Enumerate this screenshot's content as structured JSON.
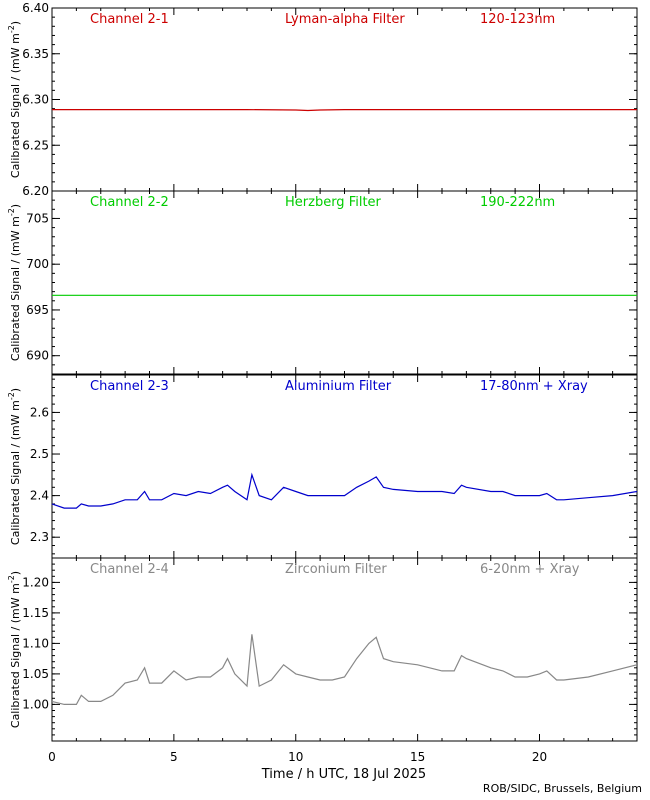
{
  "figure": {
    "x_axis_label": "Time / h UTC, 18 Jul 2025",
    "credit": "ROB/SIDC, Brussels, Belgium",
    "y_axis_label_base": "Calibrated Signal / (mW m",
    "y_axis_label_sup": "-2",
    "y_axis_label_end": ")"
  },
  "chart_data": [
    {
      "type": "line",
      "channel": "Channel 2-1",
      "filter": "Lyman-alpha Filter",
      "band": "120-123nm",
      "color": "#cc0000",
      "xlim": [
        0,
        24
      ],
      "ylim": [
        6.2,
        6.4
      ],
      "yticks": [
        6.2,
        6.25,
        6.3,
        6.35,
        6.4
      ],
      "ytick_labels": [
        "6.20",
        "6.25",
        "6.30",
        "6.35",
        "6.40"
      ],
      "x": [
        0,
        4,
        8,
        10,
        10.5,
        11,
        12,
        16,
        20,
        24
      ],
      "y": [
        6.289,
        6.289,
        6.289,
        6.2885,
        6.288,
        6.2885,
        6.289,
        6.289,
        6.289,
        6.289
      ]
    },
    {
      "type": "line",
      "channel": "Channel 2-2",
      "filter": "Herzberg Filter",
      "band": "190-222nm",
      "color": "#00cc00",
      "xlim": [
        0,
        24
      ],
      "ylim": [
        688,
        708
      ],
      "yticks": [
        690,
        695,
        700,
        705
      ],
      "ytick_labels": [
        "690",
        "695",
        "700",
        "705"
      ],
      "x": [
        0,
        6,
        12,
        18,
        24
      ],
      "y": [
        696.6,
        696.6,
        696.6,
        696.6,
        696.6
      ]
    },
    {
      "type": "line",
      "channel": "Channel 2-3",
      "filter": "Aluminium Filter",
      "band": "17-80nm + Xray",
      "color": "#0000cc",
      "xlim": [
        0,
        24
      ],
      "ylim": [
        2.25,
        2.69
      ],
      "yticks": [
        2.3,
        2.4,
        2.5,
        2.6
      ],
      "ytick_labels": [
        "2.3",
        "2.4",
        "2.5",
        "2.6"
      ],
      "x": [
        0,
        0.5,
        1,
        1.2,
        1.5,
        2,
        2.5,
        3,
        3.5,
        3.8,
        4,
        4.5,
        5,
        5.5,
        6,
        6.5,
        7,
        7.2,
        7.5,
        8,
        8.2,
        8.5,
        9,
        9.5,
        10,
        10.5,
        11,
        11.5,
        12,
        12.5,
        13,
        13.3,
        13.6,
        14,
        15,
        16,
        16.5,
        16.8,
        17,
        18,
        18.5,
        19,
        19.5,
        20,
        20.3,
        20.7,
        21,
        22,
        23,
        24
      ],
      "y": [
        2.38,
        2.37,
        2.37,
        2.38,
        2.375,
        2.375,
        2.38,
        2.39,
        2.39,
        2.41,
        2.39,
        2.39,
        2.405,
        2.4,
        2.41,
        2.405,
        2.42,
        2.425,
        2.41,
        2.39,
        2.45,
        2.4,
        2.39,
        2.42,
        2.41,
        2.4,
        2.4,
        2.4,
        2.4,
        2.42,
        2.435,
        2.445,
        2.42,
        2.415,
        2.41,
        2.41,
        2.405,
        2.425,
        2.42,
        2.41,
        2.41,
        2.4,
        2.4,
        2.4,
        2.405,
        2.39,
        2.39,
        2.395,
        2.4,
        2.41
      ]
    },
    {
      "type": "line",
      "channel": "Channel 2-4",
      "filter": "Zirconium Filter",
      "band": "6-20nm + Xray",
      "color": "#888888",
      "xlim": [
        0,
        24
      ],
      "ylim": [
        0.94,
        1.24
      ],
      "yticks": [
        1.0,
        1.05,
        1.1,
        1.15,
        1.2
      ],
      "ytick_labels": [
        "1.00",
        "1.05",
        "1.10",
        "1.15",
        "1.20"
      ],
      "x": [
        0,
        0.5,
        1,
        1.2,
        1.5,
        2,
        2.5,
        3,
        3.5,
        3.8,
        4,
        4.5,
        5,
        5.5,
        6,
        6.5,
        7,
        7.2,
        7.5,
        8,
        8.2,
        8.5,
        9,
        9.5,
        10,
        10.5,
        11,
        11.5,
        12,
        12.5,
        13,
        13.3,
        13.6,
        14,
        15,
        16,
        16.5,
        16.8,
        17,
        18,
        18.5,
        19,
        19.5,
        20,
        20.3,
        20.7,
        21,
        22,
        23,
        24
      ],
      "y": [
        1.005,
        1.0,
        1.0,
        1.015,
        1.005,
        1.005,
        1.015,
        1.035,
        1.04,
        1.06,
        1.035,
        1.035,
        1.055,
        1.04,
        1.045,
        1.045,
        1.06,
        1.075,
        1.05,
        1.03,
        1.115,
        1.03,
        1.04,
        1.065,
        1.05,
        1.045,
        1.04,
        1.04,
        1.045,
        1.075,
        1.1,
        1.11,
        1.075,
        1.07,
        1.065,
        1.055,
        1.055,
        1.08,
        1.075,
        1.06,
        1.055,
        1.045,
        1.045,
        1.05,
        1.055,
        1.04,
        1.04,
        1.045,
        1.055,
        1.065
      ]
    }
  ]
}
